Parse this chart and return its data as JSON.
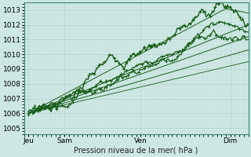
{
  "xlabel": "Pression niveau de la mer( hPa )",
  "bg_color": "#cde8e4",
  "grid_major_color": "#b0d0cc",
  "grid_minor_color": "#c4deda",
  "line_color": "#1a5e1a",
  "ylim": [
    1004.6,
    1013.5
  ],
  "xlim": [
    0,
    100
  ],
  "yticks": [
    1005,
    1006,
    1007,
    1008,
    1009,
    1010,
    1011,
    1012,
    1013
  ],
  "xtick_positions": [
    2,
    18,
    52,
    92
  ],
  "xtick_labels": [
    "Jeu",
    "Sam",
    "Ven",
    "Dim"
  ],
  "xlabel_fontsize": 7
}
